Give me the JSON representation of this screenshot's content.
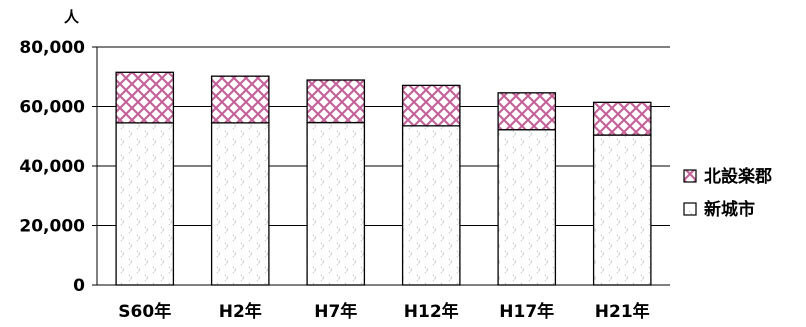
{
  "chart_data": {
    "type": "bar",
    "stacked": true,
    "unit_label": "人",
    "categories": [
      "S60年",
      "H2年",
      "H7年",
      "H12年",
      "H17年",
      "H21年"
    ],
    "series": [
      {
        "name": "新城市",
        "values": [
          54500,
          54500,
          54600,
          53500,
          52200,
          50400
        ],
        "color": "#ffffff",
        "pattern": "dotted-chevron"
      },
      {
        "name": "北設楽郡",
        "values": [
          17000,
          15700,
          14300,
          13600,
          12400,
          11000
        ],
        "color": "#cc6699",
        "pattern": "crosshatch"
      }
    ],
    "ylim": [
      0,
      80000
    ],
    "yticks": [
      "0",
      "20,000",
      "40,000",
      "60,000",
      "80,000"
    ],
    "ytick_values": [
      0,
      20000,
      40000,
      60000,
      80000
    ],
    "grid": true,
    "legend_position": "right",
    "legend": [
      {
        "name": "北設楽郡",
        "series_index": 1
      },
      {
        "name": "新城市",
        "series_index": 0
      }
    ]
  }
}
